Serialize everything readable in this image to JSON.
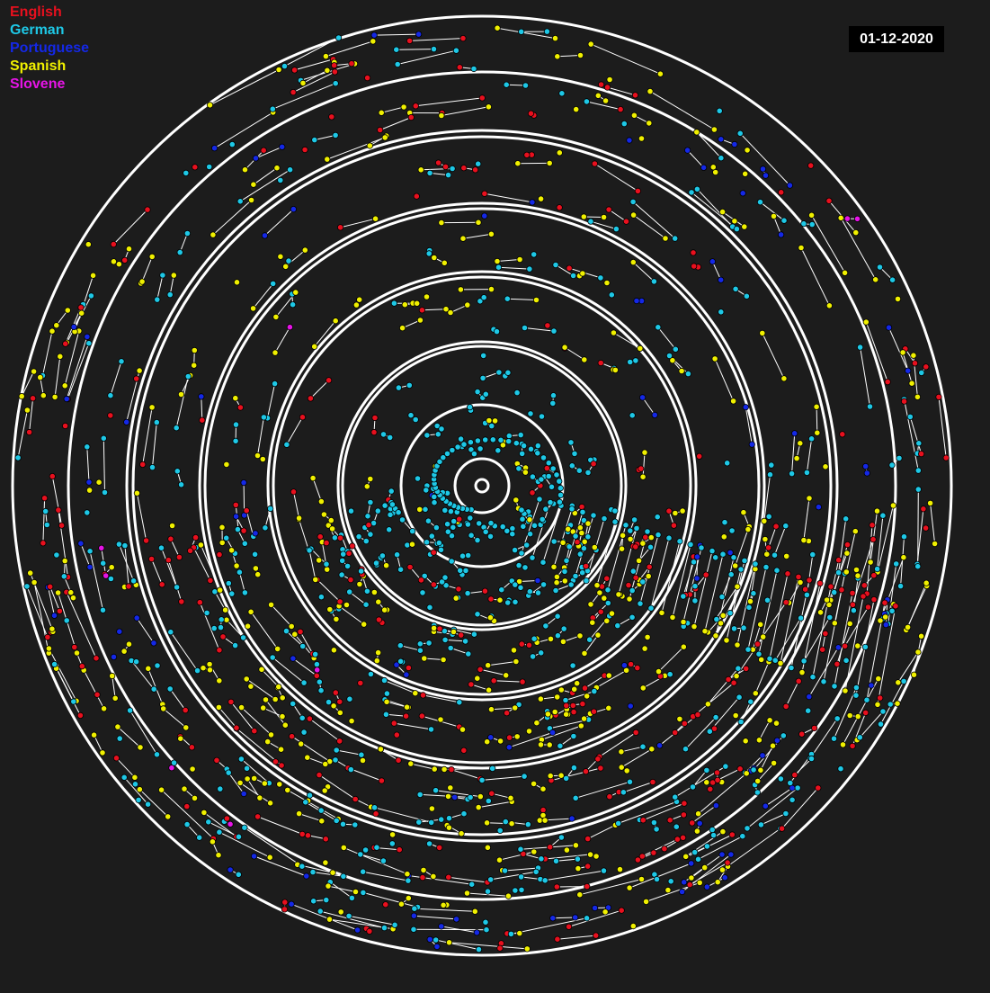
{
  "legend": {
    "items": [
      {
        "label": "English",
        "color": "#e8101e"
      },
      {
        "label": "German",
        "color": "#1ec8e6"
      },
      {
        "label": "Portuguese",
        "color": "#1428e6"
      },
      {
        "label": "Spanish",
        "color": "#f0f000"
      },
      {
        "label": "Slovene",
        "color": "#e614e6"
      }
    ]
  },
  "date_label": "01-12-2020",
  "colors": {
    "background": "#1c1c1c",
    "ring": "#ffffff",
    "link": "#ffffff",
    "date_box": "#000000"
  },
  "chart_data": {
    "type": "scatter",
    "title": "",
    "rings": 13,
    "series": [
      {
        "name": "English",
        "count": 260
      },
      {
        "name": "German",
        "count": 330
      },
      {
        "name": "Portuguese",
        "count": 80
      },
      {
        "name": "Spanish",
        "count": 420
      },
      {
        "name": "Slovene",
        "count": 6
      }
    ],
    "legend_position": "top-left",
    "grid": false
  }
}
